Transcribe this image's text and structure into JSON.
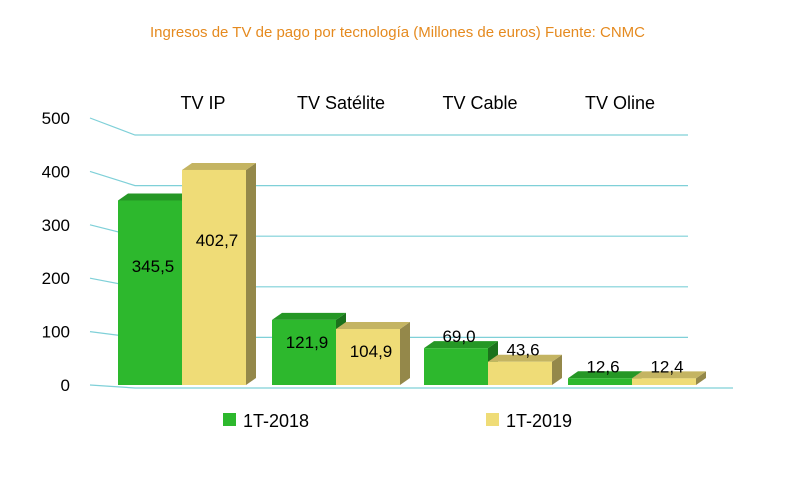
{
  "chart_data": {
    "type": "bar",
    "title": "Ingresos de TV de pago por tecnología (Millones de euros) Fuente: CNMC",
    "categories": [
      "TV IP",
      "TV Satélite",
      "TV Cable",
      "TV Oline"
    ],
    "series": [
      {
        "name": "1T-2018",
        "values": [
          345.5,
          121.9,
          69.0,
          12.6
        ],
        "labels": [
          "345,5",
          "121,9",
          "69,0",
          "12,6"
        ],
        "color": "#2db82d"
      },
      {
        "name": "1T-2019",
        "values": [
          402.7,
          104.9,
          43.6,
          12.4
        ],
        "labels": [
          "402,7",
          "104,9",
          "43,6",
          "12,4"
        ],
        "color": "#efdc77"
      }
    ],
    "yticks": [
      "0",
      "100",
      "200",
      "300",
      "400",
      "500"
    ],
    "ylim": [
      0,
      500
    ],
    "grid": true,
    "gridColor": "#7fd0d8",
    "legend": "bottom"
  }
}
